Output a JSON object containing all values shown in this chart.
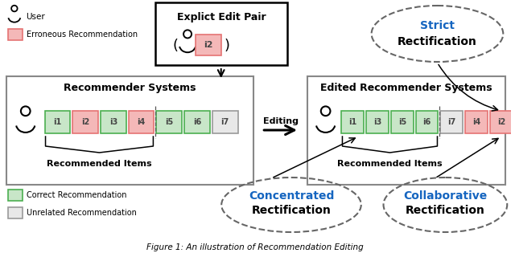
{
  "title": "Figure 1: An illustration of Recommendation Editing",
  "bg_color": "#ffffff",
  "left_box": {
    "title": "Recommender Systems",
    "items": [
      {
        "label": "i1",
        "color": "#c8e6c8",
        "border": "#4caf50"
      },
      {
        "label": "i2",
        "color": "#f4b8b8",
        "border": "#e57373"
      },
      {
        "label": "i3",
        "color": "#c8e6c8",
        "border": "#4caf50"
      },
      {
        "label": "i4",
        "color": "#f4b8b8",
        "border": "#e57373"
      },
      {
        "label": "i5",
        "color": "#c8e6c8",
        "border": "#4caf50"
      },
      {
        "label": "i6",
        "color": "#c8e6c8",
        "border": "#4caf50"
      },
      {
        "label": "i7",
        "color": "#e8e8e8",
        "border": "#999999"
      }
    ]
  },
  "right_box": {
    "title": "Edited Recommender Systems",
    "items": [
      {
        "label": "i1",
        "color": "#c8e6c8",
        "border": "#4caf50"
      },
      {
        "label": "i3",
        "color": "#c8e6c8",
        "border": "#4caf50"
      },
      {
        "label": "i5",
        "color": "#c8e6c8",
        "border": "#4caf50"
      },
      {
        "label": "i6",
        "color": "#c8e6c8",
        "border": "#4caf50"
      },
      {
        "label": "i7",
        "color": "#e8e8e8",
        "border": "#999999"
      },
      {
        "label": "i4",
        "color": "#f4b8b8",
        "border": "#e57373"
      },
      {
        "label": "i2",
        "color": "#f4b8b8",
        "border": "#e57373"
      }
    ]
  }
}
